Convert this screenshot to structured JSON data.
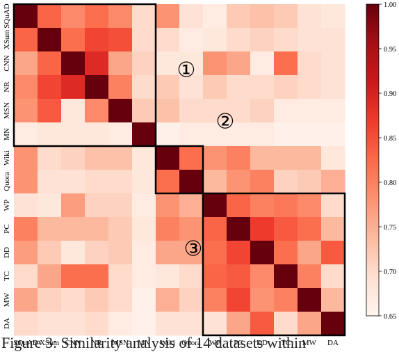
{
  "chart_data": {
    "type": "heatmap",
    "categories": [
      "SQuAD",
      "XSum",
      "CNN",
      "NR",
      "MSN",
      "MN",
      "Wiki",
      "Quora",
      "WP",
      "PC",
      "DD",
      "TC",
      "MW",
      "DA"
    ],
    "matrix": [
      [
        1.0,
        0.83,
        0.79,
        0.82,
        0.79,
        0.7,
        0.78,
        0.69,
        0.67,
        0.72,
        0.73,
        0.72,
        0.69,
        0.68
      ],
      [
        0.83,
        1.0,
        0.82,
        0.86,
        0.85,
        0.7,
        0.7,
        0.67,
        0.68,
        0.7,
        0.71,
        0.7,
        0.69,
        0.69
      ],
      [
        0.76,
        0.83,
        1.0,
        0.89,
        0.76,
        0.71,
        0.68,
        0.68,
        0.78,
        0.76,
        0.67,
        0.82,
        0.7,
        0.69
      ],
      [
        0.79,
        0.86,
        0.89,
        1.0,
        0.8,
        0.7,
        0.72,
        0.69,
        0.72,
        0.7,
        0.7,
        0.71,
        0.7,
        0.69
      ],
      [
        0.78,
        0.84,
        0.68,
        0.79,
        1.0,
        0.72,
        0.73,
        0.7,
        0.7,
        0.7,
        0.71,
        0.67,
        0.67,
        0.67
      ],
      [
        0.67,
        0.68,
        0.68,
        0.68,
        0.67,
        1.0,
        0.66,
        0.67,
        0.67,
        0.67,
        0.67,
        0.66,
        0.66,
        0.66
      ],
      [
        0.78,
        0.7,
        0.71,
        0.73,
        0.73,
        0.68,
        1.0,
        0.82,
        0.78,
        0.8,
        0.74,
        0.74,
        0.74,
        0.68
      ],
      [
        0.78,
        0.69,
        0.69,
        0.7,
        0.7,
        0.68,
        0.82,
        1.0,
        0.74,
        0.78,
        0.8,
        0.71,
        0.72,
        0.75
      ],
      [
        0.69,
        0.68,
        0.77,
        0.71,
        0.71,
        0.67,
        0.78,
        0.75,
        1.0,
        0.83,
        0.8,
        0.81,
        0.79,
        0.7
      ],
      [
        0.8,
        0.74,
        0.74,
        0.74,
        0.72,
        0.68,
        0.8,
        0.78,
        0.83,
        1.0,
        0.87,
        0.84,
        0.82,
        0.74
      ],
      [
        0.77,
        0.72,
        0.68,
        0.71,
        0.72,
        0.67,
        0.76,
        0.76,
        0.82,
        0.86,
        1.0,
        0.82,
        0.76,
        0.84
      ],
      [
        0.7,
        0.76,
        0.82,
        0.82,
        0.7,
        0.67,
        0.68,
        0.7,
        0.83,
        0.84,
        0.79,
        1.0,
        0.8,
        0.7
      ],
      [
        0.76,
        0.71,
        0.7,
        0.72,
        0.7,
        0.66,
        0.75,
        0.71,
        0.8,
        0.86,
        0.78,
        0.8,
        1.0,
        0.74
      ],
      [
        0.7,
        0.69,
        0.69,
        0.7,
        0.67,
        0.66,
        0.69,
        0.69,
        0.69,
        0.76,
        0.84,
        0.7,
        0.76,
        1.0
      ]
    ],
    "colorbar": {
      "range": [
        0.65,
        1.0
      ],
      "ticks": [
        "1.00",
        "0.95",
        "0.90",
        "0.85",
        "0.80",
        "0.75",
        "0.70",
        "0.65"
      ]
    },
    "colormap": "Reds",
    "groups": [
      {
        "label": "①",
        "start": 0,
        "end": 5
      },
      {
        "label": "②",
        "start": 6,
        "end": 7
      },
      {
        "label": "③",
        "start": 8,
        "end": 13
      }
    ]
  },
  "caption": "Figure 3: Similarity analysis of 14 datasets within"
}
